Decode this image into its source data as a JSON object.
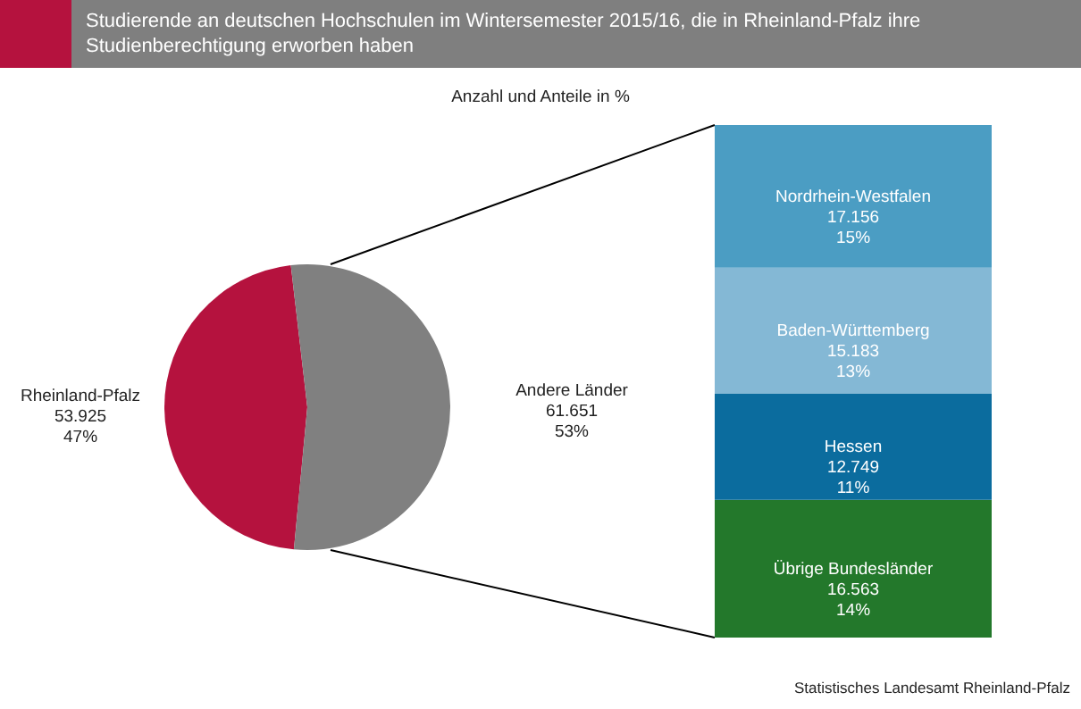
{
  "chart_data": [
    {
      "type": "pie",
      "title": "Studierende an deutschen Hochschulen im Wintersemester 2015/16, die in Rheinland-Pfalz ihre Studienberechtigung erworben haben",
      "subtitle": "Anzahl und Anteile in %",
      "categories": [
        "Rheinland-Pfalz",
        "Andere Länder"
      ],
      "values": [
        53925,
        61651
      ],
      "value_labels": [
        "53.925\n47%",
        "61.651\n53%"
      ],
      "colors": [
        "#b5123e",
        "#808080"
      ]
    },
    {
      "type": "bar",
      "stacked": true,
      "categories": [
        null
      ],
      "annotations": [
        "Statistisches Landesamt Rheinland-Pfalz"
      ],
      "series": [
        {
          "name": "Übrige Bundesländer",
          "color": "#23782b",
          "values": [
            16563
          ],
          "value_labels": [
            "16.563\n14%"
          ]
        },
        {
          "name": "Hessen",
          "color": "#0b6c9e",
          "values": [
            12749
          ],
          "value_labels": [
            "12.749\n11%"
          ]
        },
        {
          "name": "Baden-Württemberg",
          "color": "#84b8d5",
          "values": [
            15183
          ],
          "value_labels": [
            "15.183\n13%"
          ]
        },
        {
          "name": "Nordrhein-Westfalen",
          "color": "#4b9dc3",
          "values": [
            17156
          ],
          "value_labels": [
            "17.156\n15%"
          ]
        }
      ]
    }
  ]
}
